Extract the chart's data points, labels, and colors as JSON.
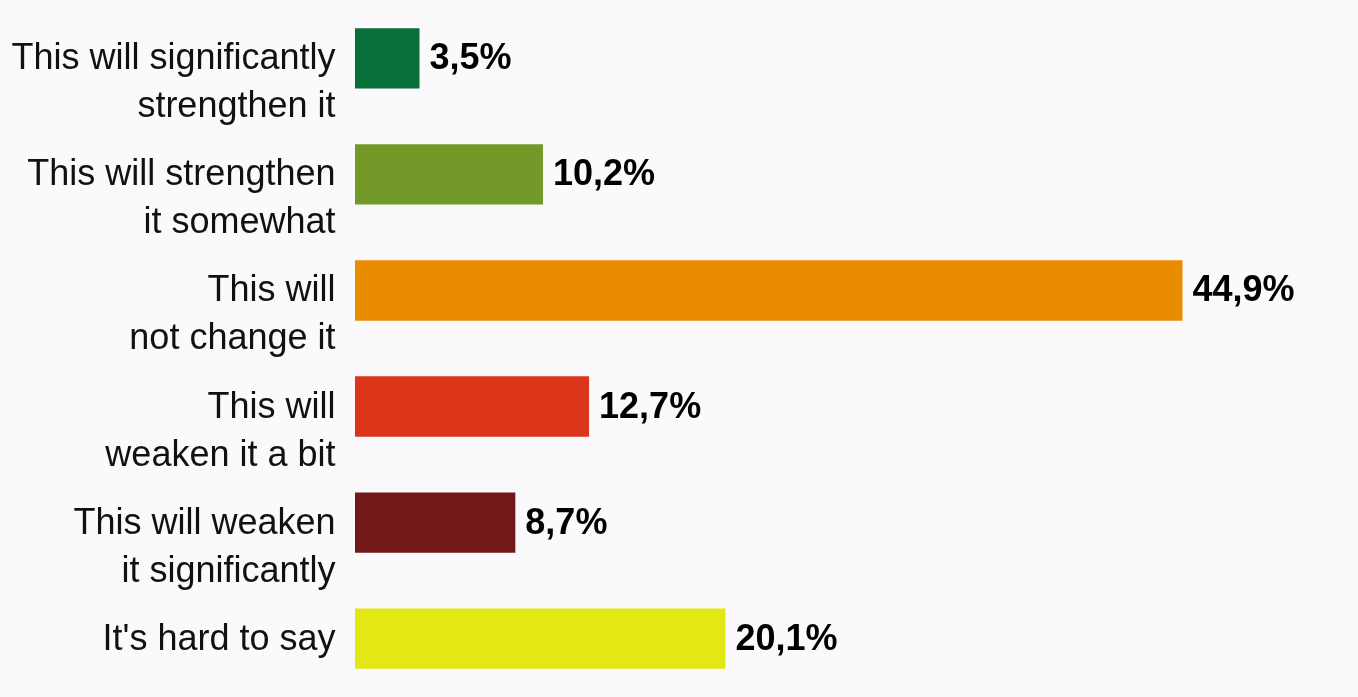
{
  "chart_data": {
    "type": "bar",
    "orientation": "horizontal",
    "categories": [
      "This will significantly strengthen it",
      "This will strengthen it somewhat",
      "This will not change it",
      "This will weaken it a bit",
      "This will weaken it significantly",
      "It's hard to say"
    ],
    "values": [
      3.5,
      10.2,
      44.9,
      12.7,
      8.7,
      20.1
    ],
    "colors": [
      "#076f37",
      "#739928",
      "#ea8c00",
      "#db351a",
      "#731816",
      "#e3e814"
    ],
    "value_labels": [
      "3,5%",
      "10,2%",
      "44,9%",
      "12,7%",
      "8,7%",
      "20,1%"
    ]
  }
}
